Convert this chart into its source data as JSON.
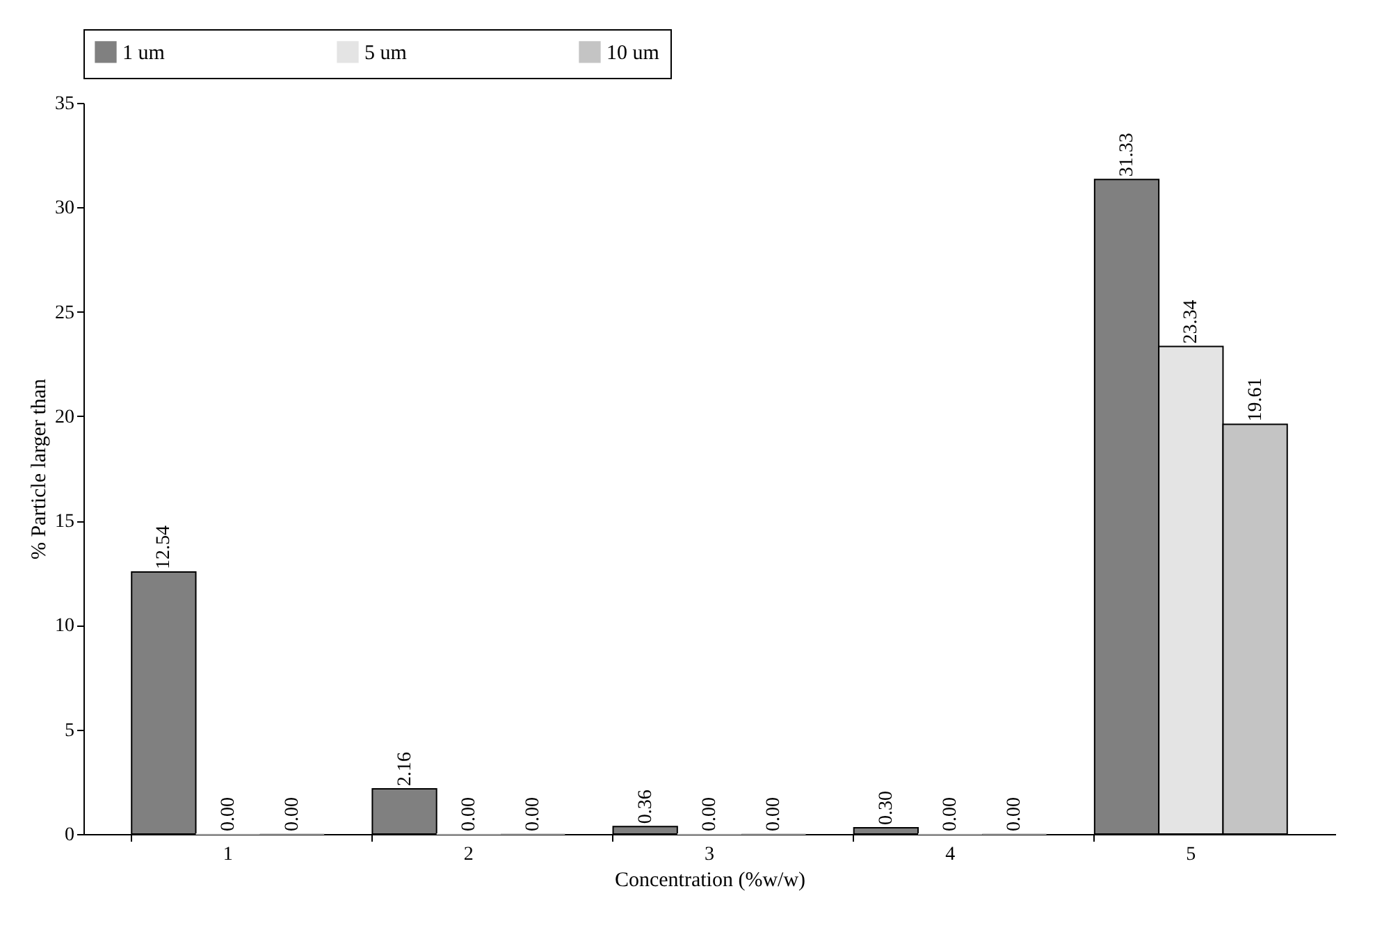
{
  "chart_data": {
    "type": "bar",
    "xlabel": "Concentration (%w/w)",
    "ylabel": "% Particle larger than",
    "categories": [
      "1",
      "2",
      "3",
      "4",
      "5"
    ],
    "series": [
      {
        "name": "1 um",
        "color": "#808080",
        "values": [
          12.54,
          2.16,
          0.36,
          0.3,
          31.33
        ],
        "value_labels": [
          "12.54",
          "2.16",
          "0.36",
          "0.30",
          "31.33"
        ]
      },
      {
        "name": "5 um",
        "color": "#e4e4e4",
        "values": [
          0,
          0,
          0,
          0,
          23.34
        ],
        "value_labels": [
          "0.00",
          "0.00",
          "0.00",
          "0.00",
          "23.34"
        ]
      },
      {
        "name": "10 um",
        "color": "#c4c4c4",
        "values": [
          0,
          0,
          0,
          0,
          19.61
        ],
        "value_labels": [
          "0.00",
          "0.00",
          "0.00",
          "0.00",
          "19.61"
        ]
      }
    ],
    "ylim": [
      0,
      35
    ],
    "yticks": [
      0,
      5,
      10,
      15,
      20,
      25,
      30,
      35
    ],
    "grid": false,
    "legend": "top"
  }
}
